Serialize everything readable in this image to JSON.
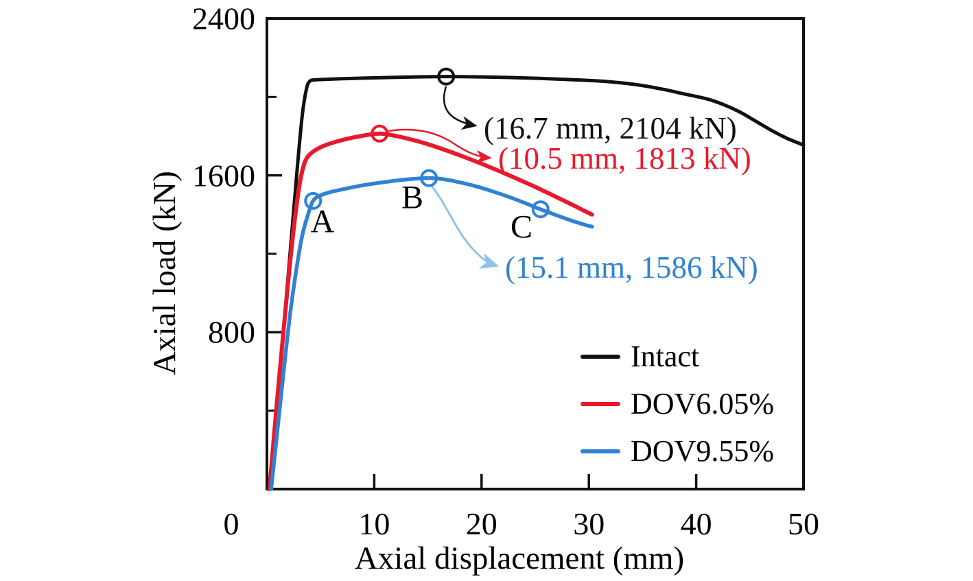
{
  "figure": {
    "background": "#ffffff",
    "axis_color": "#111111"
  },
  "chart_data": {
    "type": "line",
    "title": "",
    "xlabel": "Axial displacement (mm)",
    "ylabel": "Axial load (kN)",
    "xlim": [
      0,
      50
    ],
    "ylim": [
      0,
      2400
    ],
    "x_ticks": [
      0,
      10,
      20,
      30,
      40,
      50
    ],
    "y_ticks": [
      800,
      1600,
      2400
    ],
    "y_minor_ticks": [
      400,
      1200,
      2000
    ],
    "grid": false,
    "legend_position": "inside-bottom-right",
    "series": [
      {
        "name": "Intact",
        "color": "#111111",
        "peak": {
          "x": 16.7,
          "y": 2104,
          "label": "(16.7 mm, 2104 kN)"
        },
        "markers": [
          {
            "x": 16.7,
            "y": 2104
          }
        ],
        "points": [
          [
            0.2,
            0
          ],
          [
            0.8,
            360
          ],
          [
            1.5,
            780
          ],
          [
            2.2,
            1230
          ],
          [
            2.8,
            1620
          ],
          [
            3.3,
            1910
          ],
          [
            3.7,
            2045
          ],
          [
            4.0,
            2080
          ],
          [
            4.4,
            2087
          ],
          [
            5.5,
            2090
          ],
          [
            7,
            2093
          ],
          [
            9,
            2096
          ],
          [
            12,
            2100
          ],
          [
            16.7,
            2104
          ],
          [
            20,
            2102
          ],
          [
            24,
            2097
          ],
          [
            28,
            2089
          ],
          [
            31,
            2081
          ],
          [
            33,
            2072
          ],
          [
            35,
            2058
          ],
          [
            37,
            2038
          ],
          [
            39,
            2014
          ],
          [
            41,
            1990
          ],
          [
            42.5,
            1962
          ],
          [
            44,
            1925
          ],
          [
            45.5,
            1878
          ],
          [
            47,
            1830
          ],
          [
            48.5,
            1788
          ],
          [
            50,
            1755
          ]
        ]
      },
      {
        "name": "DOV6.05%",
        "color": "#e8192c",
        "peak": {
          "x": 10.5,
          "y": 1813,
          "label": "(10.5 mm, 1813 kN)"
        },
        "markers": [
          {
            "x": 10.5,
            "y": 1813
          }
        ],
        "points": [
          [
            0.25,
            0
          ],
          [
            0.8,
            360
          ],
          [
            1.4,
            720
          ],
          [
            2.0,
            1070
          ],
          [
            2.5,
            1330
          ],
          [
            3.0,
            1540
          ],
          [
            3.4,
            1645
          ],
          [
            3.8,
            1695
          ],
          [
            4.5,
            1728
          ],
          [
            5.5,
            1755
          ],
          [
            7,
            1780
          ],
          [
            8.5,
            1798
          ],
          [
            10.5,
            1813
          ],
          [
            12,
            1801
          ],
          [
            13.5,
            1782
          ],
          [
            15,
            1759
          ],
          [
            17,
            1722
          ],
          [
            19,
            1681
          ],
          [
            21,
            1637
          ],
          [
            23,
            1590
          ],
          [
            25,
            1541
          ],
          [
            27,
            1489
          ],
          [
            28.5,
            1449
          ],
          [
            29.5,
            1421
          ],
          [
            30.3,
            1400
          ]
        ]
      },
      {
        "name": "DOV9.55%",
        "color": "#3182d4",
        "arrow_color": "#8fc3ea",
        "peak": {
          "x": 15.1,
          "y": 1586,
          "label": "(15.1 mm, 1586 kN)"
        },
        "markers": [
          {
            "x": 4.3,
            "y": 1470
          },
          {
            "x": 15.1,
            "y": 1586
          },
          {
            "x": 25.5,
            "y": 1427
          }
        ],
        "point_labels": [
          {
            "label": "A",
            "x": 4.3,
            "y": 1470
          },
          {
            "label": "B",
            "x": 15.1,
            "y": 1586
          },
          {
            "label": "C",
            "x": 25.5,
            "y": 1427
          }
        ],
        "points": [
          [
            0.4,
            0
          ],
          [
            1.0,
            310
          ],
          [
            1.6,
            620
          ],
          [
            2.2,
            910
          ],
          [
            2.8,
            1140
          ],
          [
            3.3,
            1295
          ],
          [
            3.8,
            1395
          ],
          [
            4.3,
            1470
          ],
          [
            5.0,
            1498
          ],
          [
            6.0,
            1516
          ],
          [
            7.5,
            1534
          ],
          [
            9,
            1550
          ],
          [
            11,
            1566
          ],
          [
            13,
            1579
          ],
          [
            15.1,
            1586
          ],
          [
            16.5,
            1580
          ],
          [
            18,
            1564
          ],
          [
            19.5,
            1544
          ],
          [
            21,
            1519
          ],
          [
            22.5,
            1491
          ],
          [
            24,
            1460
          ],
          [
            25.5,
            1427
          ],
          [
            27,
            1396
          ],
          [
            28.5,
            1367
          ],
          [
            29.5,
            1350
          ],
          [
            30.3,
            1338
          ]
        ]
      }
    ]
  }
}
